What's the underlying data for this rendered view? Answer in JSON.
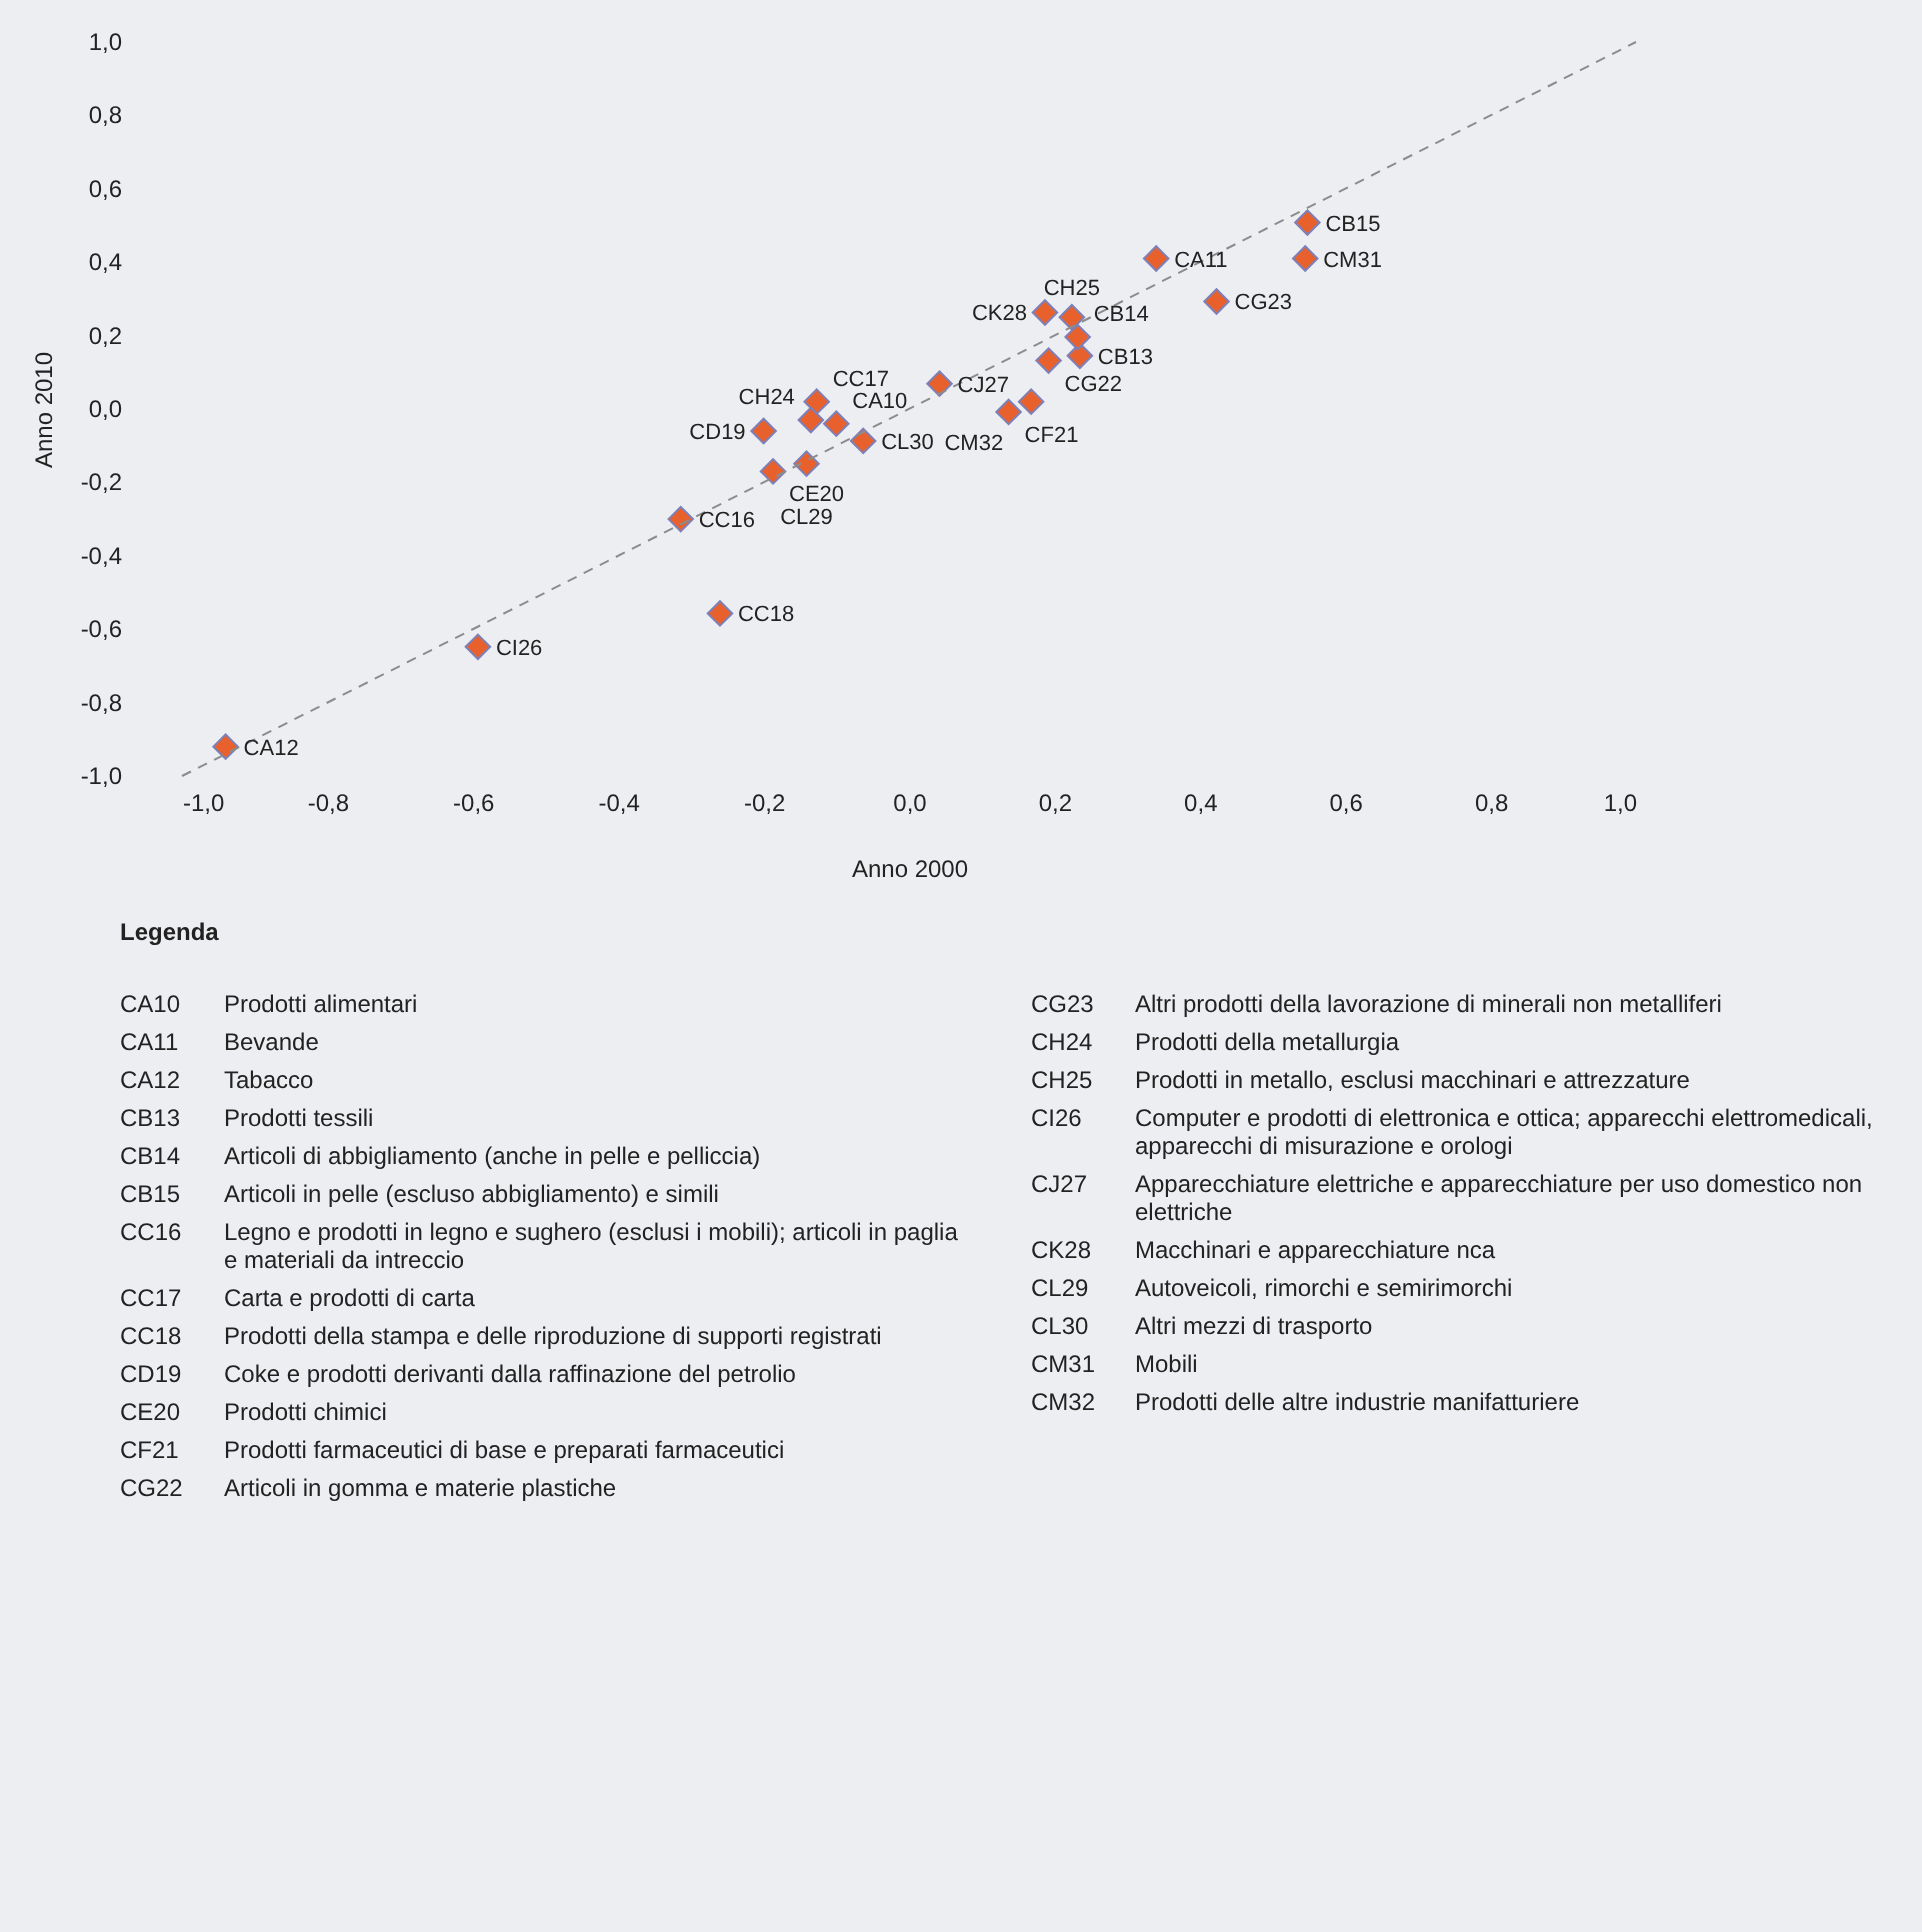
{
  "chart_data": {
    "type": "scatter",
    "xlabel": "Anno 2000",
    "ylabel": "Anno 2010",
    "xlim": [
      -1,
      1
    ],
    "ylim": [
      -1,
      1
    ],
    "xticks": [
      {
        "value": -1,
        "label": "-1,0"
      },
      {
        "value": -0.8,
        "label": "-0,8"
      },
      {
        "value": -0.6,
        "label": "-0,6"
      },
      {
        "value": -0.4,
        "label": "-0,4"
      },
      {
        "value": -0.2,
        "label": "-0,2"
      },
      {
        "value": 0,
        "label": "0,0"
      },
      {
        "value": 0.2,
        "label": "0,2"
      },
      {
        "value": 0.4,
        "label": "0,4"
      },
      {
        "value": 0.6,
        "label": "0,6"
      },
      {
        "value": 0.8,
        "label": "0,8"
      },
      {
        "value": 1,
        "label": "1,0"
      }
    ],
    "yticks": [
      {
        "value": -1,
        "label": "-1,0"
      },
      {
        "value": -0.8,
        "label": "-0,8"
      },
      {
        "value": -0.6,
        "label": "-0,6"
      },
      {
        "value": -0.4,
        "label": "-0,4"
      },
      {
        "value": -0.2,
        "label": "-0,2"
      },
      {
        "value": 0,
        "label": "0,0"
      },
      {
        "value": 0.2,
        "label": "0,2"
      },
      {
        "value": 0.4,
        "label": "0,4"
      },
      {
        "value": 0.6,
        "label": "0,6"
      },
      {
        "value": 0.8,
        "label": "0,8"
      },
      {
        "value": 1,
        "label": "1,0"
      }
    ],
    "grid": false,
    "marker": "diamond",
    "series": [
      {
        "color": "#e8612c",
        "x": [
          -0.1,
          0.34,
          -0.94,
          0.235,
          0.232,
          0.548,
          -0.314,
          -0.127,
          -0.26,
          -0.2,
          -0.187,
          0.137,
          0.192,
          0.423,
          -0.135,
          0.224,
          -0.593,
          0.042,
          0.187,
          -0.141,
          -0.063,
          0.545,
          0.168
        ],
        "values": [
          -0.04,
          0.41,
          -0.92,
          0.145,
          0.196,
          0.508,
          -0.3,
          0.02,
          -0.557,
          -0.06,
          -0.17,
          -0.008,
          0.132,
          0.293,
          -0.03,
          0.25,
          -0.648,
          0.069,
          0.263,
          -0.149,
          -0.087,
          0.41,
          0.02
        ]
      },
      {
        "type": "line",
        "color": "#8c8c8c",
        "line_style": "dashed",
        "marker": "none",
        "x": [
          -1,
          1
        ],
        "values": [
          -1,
          1
        ]
      }
    ],
    "annotations": [
      {
        "text": "CA10",
        "x": -0.1,
        "y": -0.04
      },
      {
        "text": "CA11",
        "x": 0.34,
        "y": 0.41
      },
      {
        "text": "CA12",
        "x": -0.94,
        "y": -0.92
      },
      {
        "text": "CB13",
        "x": 0.235,
        "y": 0.145
      },
      {
        "text": "CB14",
        "x": 0.232,
        "y": 0.196
      },
      {
        "text": "CB15",
        "x": 0.548,
        "y": 0.508
      },
      {
        "text": "CC16",
        "x": -0.314,
        "y": -0.3
      },
      {
        "text": "CC17",
        "x": -0.127,
        "y": 0.02
      },
      {
        "text": "CC18",
        "x": -0.26,
        "y": -0.557
      },
      {
        "text": "CD19",
        "x": -0.2,
        "y": -0.06
      },
      {
        "text": "CE20",
        "x": -0.187,
        "y": -0.17
      },
      {
        "text": "CF21",
        "x": 0.137,
        "y": -0.008
      },
      {
        "text": "CG22",
        "x": 0.192,
        "y": 0.132
      },
      {
        "text": "CG23",
        "x": 0.423,
        "y": 0.293
      },
      {
        "text": "CH24",
        "x": -0.135,
        "y": -0.03
      },
      {
        "text": "CH25",
        "x": 0.224,
        "y": 0.25
      },
      {
        "text": "CI26",
        "x": -0.593,
        "y": -0.648
      },
      {
        "text": "CJ27",
        "x": 0.042,
        "y": 0.069
      },
      {
        "text": "CK28",
        "x": 0.187,
        "y": 0.263
      },
      {
        "text": "CL29",
        "x": -0.141,
        "y": -0.149
      },
      {
        "text": "CL30",
        "x": -0.063,
        "y": -0.087
      },
      {
        "text": "CM31",
        "x": 0.545,
        "y": 0.41
      },
      {
        "text": "CM32",
        "x": 0.168,
        "y": 0.02
      },
      "Legenda",
      "CA10 Prodotti alimentari",
      "CA11 Bevande",
      "CA12 Tabacco",
      "CB13 Prodotti tessili",
      "CB14 Articoli di abbigliamento (anche in pelle e pelliccia)",
      "CB15 Articoli in pelle (escluso abbigliamento) e simili",
      "CC16 Legno e prodotti in legno e sughero (esclusi i mobili); articoli in paglia e materiali da intreccio",
      "CC17 Carta e prodotti di carta",
      "CC18 Prodotti della stampa e delle riproduzione di supporti registrati",
      "CD19 Coke e prodotti derivanti dalla raffinazione del petrolio",
      "CE20 Prodotti chimici",
      "CF21 Prodotti farmaceutici di base e preparati farmaceutici",
      "CG22 Articoli in gomma e materie plastiche",
      "CG23 Altri prodotti della lavorazione di minerali non metalliferi",
      "CH24 Prodotti della metallurgia",
      "CH25 Prodotti in metallo, esclusi macchinari e attrezzature",
      "CI26 Computer e prodotti di elettronica e ottica; apparecchi elettromedicali, apparecchi di misurazione e orologi",
      "CJ27 Apparecchiature elettriche e apparecchiature per uso domestico non elettriche",
      "CK28 Macchinari e apparecchiature nca",
      "CL29 Autoveicoli, rimorchi e semirimorchi",
      "CL30 Altri mezzi di trasporto",
      "CM31 Mobili",
      "CM32 Prodotti delle altre industrie manifatturiere"
    ]
  }
}
